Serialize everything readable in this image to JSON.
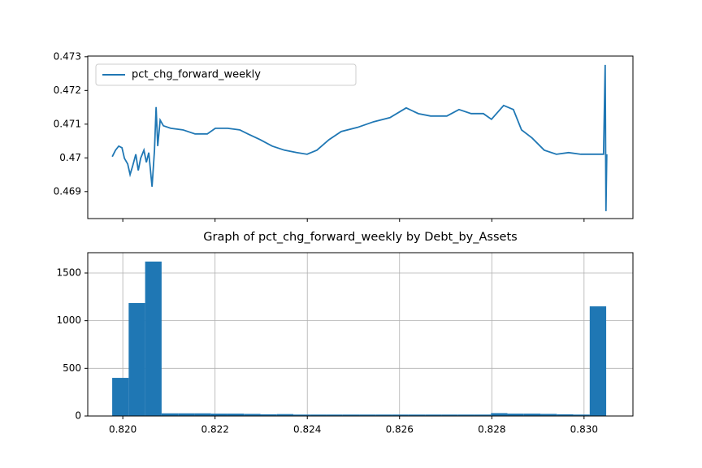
{
  "chart_data": [
    {
      "type": "line",
      "legend": "upper left",
      "grid": false,
      "xlim": [
        0.81924,
        0.83106
      ],
      "ylim": [
        0.4682,
        0.47302
      ],
      "yticks": [
        0.469,
        0.47,
        0.471,
        0.472,
        0.473
      ],
      "series": [
        {
          "name": "pct_chg_forward_weekly",
          "color": "#1f77b4",
          "x": [
            0.819771,
            0.819842,
            0.819912,
            0.819982,
            0.820035,
            0.820106,
            0.820158,
            0.820211,
            0.820282,
            0.820335,
            0.820387,
            0.820458,
            0.820511,
            0.820563,
            0.820634,
            0.820687,
            0.820722,
            0.820757,
            0.82081,
            0.82088,
            0.821039,
            0.821303,
            0.821567,
            0.821831,
            0.822007,
            0.822271,
            0.822535,
            0.822711,
            0.822975,
            0.823239,
            0.823504,
            0.823768,
            0.823996,
            0.824208,
            0.824472,
            0.824736,
            0.825088,
            0.82544,
            0.825792,
            0.826144,
            0.826408,
            0.826673,
            0.827025,
            0.827289,
            0.827553,
            0.827817,
            0.827993,
            0.828257,
            0.828468,
            0.828644,
            0.828873,
            0.829137,
            0.829401,
            0.829665,
            0.82993,
            0.830282,
            0.830423,
            0.830458,
            0.830475,
            0.830493
          ],
          "values": [
            0.470036,
            0.470229,
            0.470349,
            0.470301,
            0.469988,
            0.469819,
            0.469506,
            0.469747,
            0.470108,
            0.469627,
            0.469988,
            0.470229,
            0.469867,
            0.470157,
            0.469145,
            0.470229,
            0.471506,
            0.470349,
            0.47112,
            0.470952,
            0.470879,
            0.470831,
            0.470711,
            0.470711,
            0.470879,
            0.470879,
            0.470831,
            0.470711,
            0.470542,
            0.470349,
            0.470229,
            0.470157,
            0.470108,
            0.470229,
            0.470542,
            0.470783,
            0.470904,
            0.471072,
            0.471193,
            0.471482,
            0.471313,
            0.471241,
            0.471241,
            0.471434,
            0.471313,
            0.471313,
            0.471145,
            0.471554,
            0.471434,
            0.470831,
            0.47059,
            0.470229,
            0.470108,
            0.470157,
            0.470108,
            0.470108,
            0.470108,
            0.472759,
            0.468421,
            0.470108
          ]
        }
      ]
    },
    {
      "type": "histogram",
      "title": "Graph of pct_chg_forward_weekly by Debt_by_Assets",
      "grid": true,
      "color": "#1f77b4",
      "xlim": [
        0.81924,
        0.83106
      ],
      "ylim": [
        0,
        1713
      ],
      "xticks": [
        {
          "value": 0.82,
          "label": "0.820"
        },
        0.822,
        0.824,
        0.826,
        0.828,
        {
          "value": 0.83,
          "label": "0.830"
        }
      ],
      "yticks": [
        0,
        500,
        1000,
        1500
      ],
      "bins": [
        0.81977,
        0.820127,
        0.820484,
        0.820841,
        0.821198,
        0.821555,
        0.821912,
        0.822269,
        0.822626,
        0.822983,
        0.82334,
        0.823697,
        0.824054,
        0.824411,
        0.824768,
        0.825125,
        0.825482,
        0.825839,
        0.826196,
        0.826553,
        0.82691,
        0.827267,
        0.827624,
        0.827981,
        0.828338,
        0.828695,
        0.829052,
        0.829409,
        0.829766,
        0.830123,
        0.83048
      ],
      "values": [
        400,
        1185,
        1620,
        28,
        28,
        28,
        25,
        25,
        22,
        18,
        20,
        15,
        15,
        15,
        15,
        15,
        15,
        15,
        15,
        15,
        15,
        15,
        15,
        30,
        25,
        25,
        22,
        18,
        15,
        1150
      ]
    }
  ]
}
